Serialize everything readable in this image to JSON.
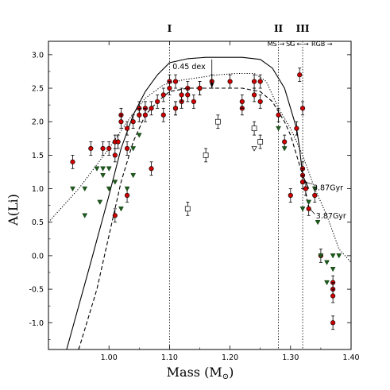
{
  "chart_data": {
    "type": "scatter",
    "xlabel_main": "Mass (M",
    "xlabel_sub": "⊙",
    "xlabel_end": ")",
    "ylabel": "A(Li)",
    "xlim": [
      0.9,
      1.4
    ],
    "ylim": [
      -1.4,
      3.2
    ],
    "xticks": [
      1.0,
      1.1,
      1.2,
      1.3,
      1.4
    ],
    "xtick_labels": [
      "1.00",
      "1.10",
      "1.20",
      "1.30",
      "1.40"
    ],
    "yticks": [
      3.0,
      2.5,
      2.0,
      1.5,
      1.0,
      0.5,
      0.0,
      -0.5,
      -1.0
    ],
    "ytick_labels": [
      "3.0",
      "2.5",
      "2.0",
      "1.5",
      "1.0",
      "0.5",
      "0.0",
      "-0.5",
      "-1.0"
    ],
    "vlines": [
      {
        "x": 1.1,
        "label": "I"
      },
      {
        "x": 1.28,
        "label": "II"
      },
      {
        "x": 1.32,
        "label": "III"
      }
    ],
    "stage_labels": [
      "MS",
      "SG",
      "RGB"
    ],
    "annotations": {
      "dex": "0.45 dex",
      "age_upper": "3.87Gyr",
      "age_lower": "3.87Gyr"
    },
    "colors": {
      "detection": "#cc0000",
      "upper_limit": "#1e5a1e",
      "open": "#ffffff"
    },
    "series": [
      {
        "marker": "red-circle-with-errorbar",
        "x": [
          0.94,
          0.97,
          0.99,
          1.0,
          1.01,
          1.01,
          1.015,
          1.02,
          1.02,
          1.03,
          1.03,
          1.04,
          1.05,
          1.05,
          1.06,
          1.06,
          1.07,
          1.07,
          1.08,
          1.09,
          1.09,
          1.1,
          1.1,
          1.11,
          1.11,
          1.11,
          1.12,
          1.12,
          1.13,
          1.13,
          1.14,
          1.15,
          1.15,
          1.17,
          1.2,
          1.22,
          1.22,
          1.24,
          1.24,
          1.25,
          1.25,
          1.28,
          1.29,
          1.31,
          1.315,
          1.32,
          1.32,
          1.32,
          1.32,
          1.325,
          1.33,
          1.34,
          1.35,
          1.37,
          1.37,
          1.37,
          1.37
        ],
        "y": [
          1.4,
          1.6,
          1.6,
          1.6,
          1.5,
          1.7,
          1.7,
          2.1,
          2.0,
          1.6,
          1.9,
          2.0,
          2.2,
          2.1,
          2.2,
          2.1,
          2.2,
          1.3,
          2.3,
          2.4,
          2.1,
          2.6,
          2.5,
          2.6,
          2.2,
          2.2,
          2.3,
          2.4,
          2.5,
          2.4,
          2.3,
          2.5,
          2.5,
          2.6,
          2.6,
          2.2,
          2.3,
          2.6,
          2.4,
          2.3,
          2.6,
          2.1,
          1.7,
          1.9,
          2.7,
          2.2,
          1.3,
          1.2,
          1.1,
          1.0,
          0.7,
          0.9,
          0.0,
          -0.4,
          -0.5,
          -0.6,
          -1.0
        ],
        "yerr": 0.1
      },
      {
        "marker": "red-circle-low-extra",
        "x": [
          1.01,
          1.03,
          1.3
        ],
        "y": [
          0.6,
          0.9,
          0.9
        ],
        "yerr": 0.1
      },
      {
        "marker": "green-down-triangle-upper-limit",
        "x": [
          0.94,
          0.96,
          0.96,
          0.98,
          0.985,
          0.99,
          0.99,
          1.0,
          1.0,
          1.01,
          1.02,
          1.03,
          1.04,
          1.04,
          1.05,
          1.28,
          1.29,
          1.32,
          1.33,
          1.34,
          1.345,
          1.35,
          1.36,
          1.36,
          1.37,
          1.37,
          1.38
        ],
        "y": [
          1.0,
          1.0,
          0.6,
          1.3,
          0.8,
          1.2,
          1.3,
          1.0,
          1.3,
          1.1,
          0.7,
          1.0,
          1.2,
          1.6,
          1.8,
          1.9,
          1.6,
          0.7,
          0.8,
          1.0,
          0.5,
          0.0,
          -0.1,
          -0.4,
          0.0,
          -0.2,
          0.0
        ]
      },
      {
        "marker": "open-square",
        "x": [
          1.13,
          1.16,
          1.18,
          1.24,
          1.25
        ],
        "y": [
          0.7,
          1.5,
          2.0,
          1.9,
          1.7
        ],
        "yerr": 0.1
      },
      {
        "marker": "open-down-triangle",
        "x": [
          1.24
        ],
        "y": [
          1.6
        ]
      }
    ],
    "curves": [
      {
        "style": "solid",
        "x": [
          0.93,
          0.97,
          1.0,
          1.02,
          1.04,
          1.06,
          1.08,
          1.1,
          1.13,
          1.16,
          1.19,
          1.22,
          1.25,
          1.27,
          1.29,
          1.3,
          1.31,
          1.315,
          1.32,
          1.33
        ],
        "y": [
          -1.5,
          -0.1,
          0.9,
          1.6,
          2.1,
          2.45,
          2.7,
          2.88,
          2.94,
          2.96,
          2.96,
          2.96,
          2.93,
          2.8,
          2.5,
          2.2,
          1.9,
          1.6,
          1.2,
          1.0
        ]
      },
      {
        "style": "dashed",
        "x": [
          0.95,
          0.98,
          1.0,
          1.02,
          1.04,
          1.06,
          1.08,
          1.1,
          1.13,
          1.16,
          1.19,
          1.22,
          1.25,
          1.27,
          1.29,
          1.3,
          1.31,
          1.32,
          1.33
        ],
        "y": [
          -1.5,
          -0.5,
          0.3,
          1.1,
          1.7,
          2.1,
          2.3,
          2.45,
          2.5,
          2.5,
          2.5,
          2.5,
          2.45,
          2.3,
          2.0,
          1.8,
          1.5,
          1.2,
          0.7
        ]
      },
      {
        "style": "dotted",
        "x": [
          0.9,
          0.95,
          1.0,
          1.03,
          1.06,
          1.09,
          1.12,
          1.15,
          1.18,
          1.21,
          1.24,
          1.26,
          1.28,
          1.3,
          1.32,
          1.34,
          1.36,
          1.38,
          1.4
        ],
        "y": [
          0.5,
          1.0,
          1.6,
          2.0,
          2.35,
          2.55,
          2.62,
          2.66,
          2.7,
          2.72,
          2.72,
          2.6,
          2.2,
          1.9,
          1.5,
          1.0,
          0.6,
          0.1,
          -0.1
        ]
      }
    ]
  }
}
